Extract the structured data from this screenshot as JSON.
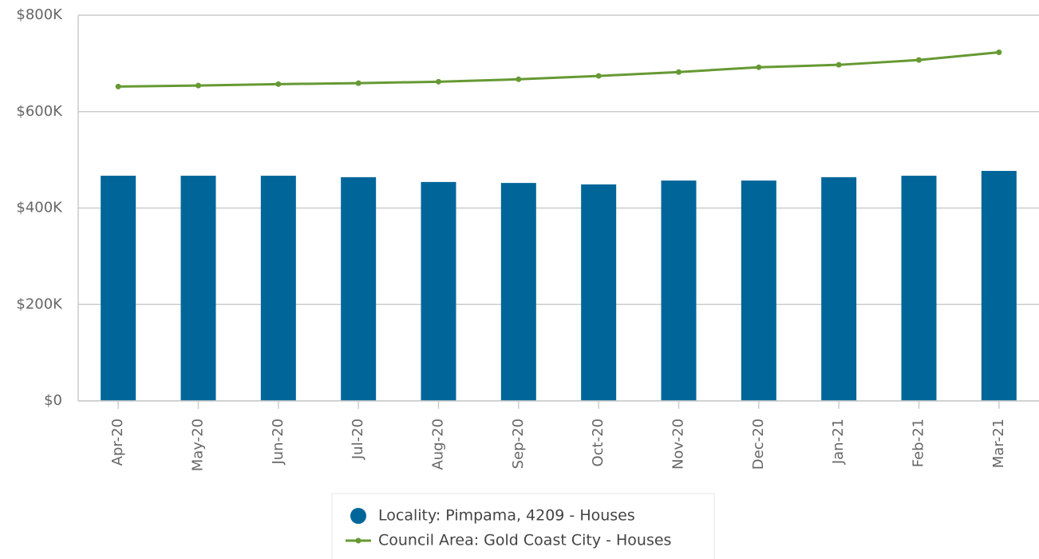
{
  "chart_data": {
    "type": "combo",
    "categories": [
      "Apr-20",
      "May-20",
      "Jun-20",
      "Jul-20",
      "Aug-20",
      "Sep-20",
      "Oct-20",
      "Nov-20",
      "Dec-20",
      "Jan-21",
      "Feb-21",
      "Mar-21"
    ],
    "series": [
      {
        "name": "Locality: Pimpama, 4209 - Houses",
        "color": "#006699",
        "type": "bar",
        "values": [
          467000,
          467000,
          467000,
          464000,
          454000,
          452000,
          449000,
          457000,
          457000,
          464000,
          467000,
          477000
        ]
      },
      {
        "name": "Council Area: Gold Coast City - Houses",
        "color": "#669933",
        "type": "line",
        "values": [
          652000,
          654000,
          657000,
          659000,
          662000,
          667000,
          674000,
          682000,
          692000,
          697000,
          707000,
          723000
        ]
      }
    ],
    "ylim": [
      0,
      800000
    ],
    "yticks": [
      {
        "value": 0,
        "label": "$0"
      },
      {
        "value": 200000,
        "label": "$200K"
      },
      {
        "value": 400000,
        "label": "$400K"
      },
      {
        "value": 600000,
        "label": "$600K"
      },
      {
        "value": 800000,
        "label": "$800K"
      }
    ],
    "grid": true,
    "legend": "bottom"
  }
}
